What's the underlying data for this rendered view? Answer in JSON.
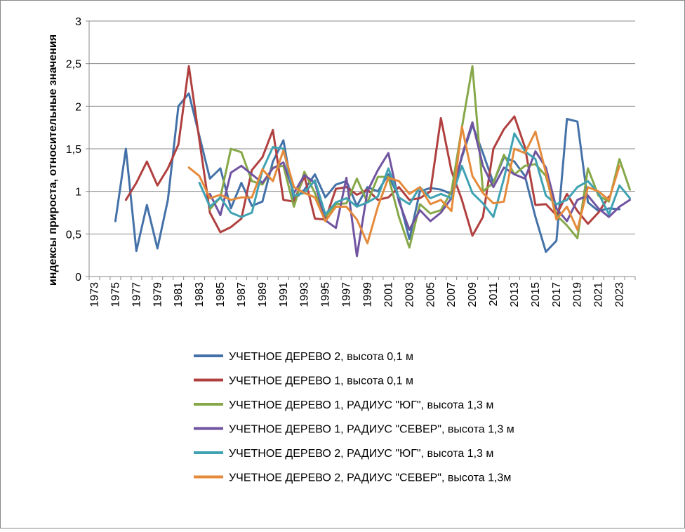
{
  "chart_data": {
    "type": "line",
    "title": "",
    "xlabel": "",
    "ylabel": "индексы прироста, относительные значения",
    "ylim": [
      0,
      3
    ],
    "yticks": [
      0,
      0.5,
      1,
      1.5,
      2,
      2.5,
      3
    ],
    "ytick_labels": [
      "0",
      "0,5",
      "1",
      "1,5",
      "2",
      "2,5",
      "3"
    ],
    "x_start": 1973,
    "x_end": 2024,
    "xtick_labels": [
      "1973",
      "1975",
      "1977",
      "1979",
      "1981",
      "1983",
      "1985",
      "1987",
      "1989",
      "1991",
      "1993",
      "1995",
      "1997",
      "1999",
      "2001",
      "2003",
      "2005",
      "2007",
      "2009",
      "2011",
      "2013",
      "2015",
      "2017",
      "2019",
      "2021",
      "2023"
    ],
    "grid": true,
    "legend": "bottom",
    "series": [
      {
        "name": "УЧЕТНОЕ ДЕРЕВО 2, высота 0,1 м",
        "color": "#4472A8",
        "start": 1975,
        "values": [
          0.65,
          1.5,
          0.3,
          0.84,
          0.33,
          0.9,
          2.0,
          2.15,
          1.65,
          1.15,
          1.27,
          0.8,
          1.1,
          0.83,
          0.88,
          1.35,
          1.6,
          0.9,
          1.02,
          1.2,
          0.93,
          1.08,
          1.12,
          0.83,
          1.05,
          1.0,
          1.2,
          0.92,
          0.44,
          1.0,
          1.04,
          1.02,
          0.97,
          1.4,
          1.78,
          1.45,
          1.1,
          1.4,
          1.35,
          1.18,
          0.7,
          0.29,
          0.42,
          1.85,
          1.82,
          0.87,
          0.77,
          0.8,
          0.79
        ]
      },
      {
        "name": "УЧЕТНОЕ ДЕРЕВО 1, высота 0,1 м",
        "color": "#B0403F",
        "start": 1976,
        "values": [
          0.9,
          1.1,
          1.35,
          1.07,
          1.27,
          1.55,
          2.47,
          1.6,
          0.75,
          0.52,
          0.58,
          0.68,
          1.25,
          1.4,
          1.72,
          0.9,
          0.88,
          1.18,
          0.68,
          0.67,
          1.03,
          1.05,
          0.96,
          1.02,
          0.9,
          0.93,
          1.05,
          0.9,
          0.92,
          1.0,
          1.86,
          1.24,
          0.9,
          0.48,
          0.7,
          1.5,
          1.73,
          1.88,
          1.52,
          0.84,
          0.85,
          0.72,
          0.97,
          0.77,
          0.62,
          0.75,
          0.94
        ]
      },
      {
        "name": "УЧЕТНОЕ ДЕРЕВО 1, РАДИУС \"ЮГ\", высота 1,3 м",
        "color": "#86A849",
        "start": 1984,
        "values": [
          0.79,
          0.93,
          1.5,
          1.46,
          1.12,
          1.08,
          1.28,
          1.3,
          0.82,
          1.23,
          0.98,
          0.7,
          0.85,
          0.86,
          1.15,
          0.87,
          1.17,
          1.17,
          0.7,
          0.34,
          0.85,
          0.74,
          0.78,
          1.0,
          1.75,
          2.47,
          1.0,
          1.1,
          1.43,
          1.2,
          1.3,
          1.32,
          1.18,
          0.72,
          0.6,
          0.45,
          1.27,
          0.95,
          0.88,
          1.38,
          1.02
        ]
      },
      {
        "name": "УЧЕТНОЕ ДЕРЕВО 1, РАДИУС \"СЕВЕР\", высота 1,3 м",
        "color": "#7054A0",
        "start": 1984,
        "values": [
          0.97,
          0.72,
          1.22,
          1.3,
          1.2,
          1.1,
          1.27,
          1.34,
          0.98,
          1.19,
          1.1,
          0.66,
          0.57,
          1.16,
          0.24,
          1.0,
          1.25,
          1.45,
          0.88,
          0.55,
          0.78,
          0.65,
          0.75,
          0.92,
          1.42,
          1.81,
          1.3,
          1.05,
          1.28,
          1.2,
          1.15,
          1.47,
          1.28,
          0.8,
          0.65,
          0.9,
          0.95,
          0.8,
          0.7,
          0.82,
          0.9
        ]
      },
      {
        "name": "УЧЕТНОЕ ДЕРЕВО 2, РАДИУС \"ЮГ\", высота 1,3 м",
        "color": "#3FA2B3",
        "start": 1983,
        "values": [
          1.1,
          0.82,
          0.93,
          0.75,
          0.7,
          0.75,
          1.25,
          1.52,
          1.5,
          0.95,
          0.98,
          1.13,
          0.73,
          0.87,
          0.92,
          0.82,
          0.87,
          0.94,
          1.27,
          0.93,
          0.85,
          1.05,
          0.92,
          0.97,
          0.92,
          1.3,
          0.98,
          0.86,
          0.7,
          1.15,
          1.68,
          1.47,
          1.38,
          0.95,
          0.85,
          0.9,
          1.05,
          1.12,
          0.98,
          0.73,
          1.07,
          0.92
        ]
      },
      {
        "name": "УЧЕТНОЕ ДЕРЕВО 2, РАДИУС \"СЕВЕР\", высота 1,3м",
        "color": "#E58A3A",
        "start": 1982,
        "values": [
          1.28,
          1.18,
          0.92,
          0.96,
          0.9,
          0.93,
          0.93,
          1.26,
          1.12,
          1.48,
          1.05,
          0.98,
          0.93,
          0.65,
          0.82,
          0.82,
          0.67,
          0.39,
          0.82,
          1.16,
          1.12,
          0.97,
          1.05,
          0.85,
          0.9,
          0.77,
          1.76,
          1.18,
          0.98,
          0.86,
          0.88,
          1.5,
          1.45,
          1.7,
          1.22,
          0.67,
          0.82,
          0.55,
          1.05,
          1.0,
          0.9,
          1.3
        ]
      }
    ]
  }
}
